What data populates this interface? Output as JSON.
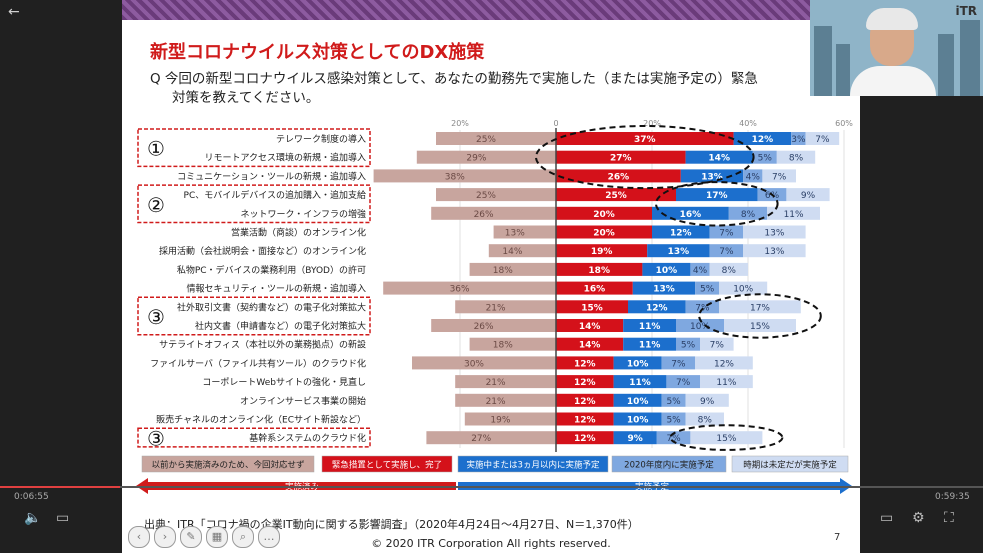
{
  "slide": {
    "title": "新型コロナウイルス対策としてのDX施策",
    "question_line1": "Q 今回の新型コロナウイルス感染対策として、あなたの勤務先で実施した（または実施予定の）緊急",
    "question_line2": "対策を教えてください。",
    "footnote": "出典：ITR「コロナ禍の企業IT動向に関する影響調査」（2020年4月24日～4月27日、N＝1,370件）",
    "copyright": "© 2020 ITR Corporation  All rights reserved.",
    "page_number": "7"
  },
  "player": {
    "time_elapsed": "0:06:55",
    "time_total": "0:59:35",
    "webcam_logo": "iTR"
  },
  "chart_data": {
    "type": "diverging-stacked-bar",
    "axis_ticks": [
      "20%",
      "0",
      "20%",
      "40%",
      "60%"
    ],
    "categories": [
      "テレワーク制度の導入",
      "リモートアクセス環境の新規・追加導入",
      "コミュニケーション・ツールの新規・追加導入",
      "PC、モバイルデバイスの追加購入・追加支給",
      "ネットワーク・インフラの増強",
      "営業活動（商談）のオンライン化",
      "採用活動（会社説明会・面接など）のオンライン化",
      "私物PC・デバイスの業務利用（BYOD）の許可",
      "情報セキュリティ・ツールの新規・追加導入",
      "社外取引文書（契約書など）の電子化対策拡大",
      "社内文書（申請書など）の電子化対策拡大",
      "サテライトオフィス（本社以外の業務拠点）の新設",
      "ファイルサーバ（ファイル共有ツール）のクラウド化",
      "コーポレートWebサイトの強化・見直し",
      "オンラインサービス事業の開始",
      "販売チャネルのオンライン化（ECサイト新設など）",
      "基幹系システムのクラウド化"
    ],
    "series": [
      {
        "name": "以前から実施済みのため、今回対応せず",
        "color": "#c8a59e",
        "values": [
          25,
          29,
          38,
          25,
          26,
          13,
          14,
          18,
          36,
          21,
          26,
          18,
          30,
          21,
          21,
          19,
          27
        ]
      },
      {
        "name": "緊急措置として実施し、完了",
        "color": "#d4111a",
        "values": [
          37,
          27,
          26,
          25,
          20,
          20,
          19,
          18,
          16,
          15,
          14,
          14,
          12,
          12,
          12,
          12,
          12
        ]
      },
      {
        "name": "実施中または3ヵ月以内に実施予定",
        "color": "#1c6fcd",
        "values": [
          12,
          14,
          13,
          17,
          16,
          12,
          13,
          10,
          13,
          12,
          11,
          11,
          10,
          11,
          10,
          10,
          9
        ]
      },
      {
        "name": "2020年度内に実施予定",
        "color": "#7fa8e0",
        "values": [
          3,
          5,
          4,
          6,
          8,
          7,
          7,
          4,
          5,
          7,
          10,
          5,
          7,
          7,
          5,
          5,
          7
        ]
      },
      {
        "name": "時期は未定だが実施予定",
        "color": "#cfdcf2",
        "values": [
          7,
          8,
          7,
          9,
          11,
          13,
          13,
          8,
          10,
          17,
          15,
          7,
          12,
          11,
          9,
          8,
          15
        ]
      }
    ],
    "groups": [
      {
        "label": "①",
        "rows": [
          0,
          1,
          2
        ]
      },
      {
        "label": "②",
        "rows": [
          3,
          4
        ]
      },
      {
        "label": "③",
        "rows": [
          9,
          10
        ]
      },
      {
        "label": "③",
        "rows": [
          16,
          16
        ]
      }
    ],
    "highlight_circles": [
      {
        "row_from": 0,
        "row_to": 2,
        "series": 1
      },
      {
        "row_from": 3,
        "row_to": 4,
        "series": 2
      },
      {
        "row_from": 9,
        "row_to": 10,
        "series": 4
      },
      {
        "row_from": 16,
        "row_to": 16,
        "series": 4
      }
    ],
    "legend_bottom": {
      "done_label": "実施済み",
      "planned_label": "実施予定"
    }
  }
}
